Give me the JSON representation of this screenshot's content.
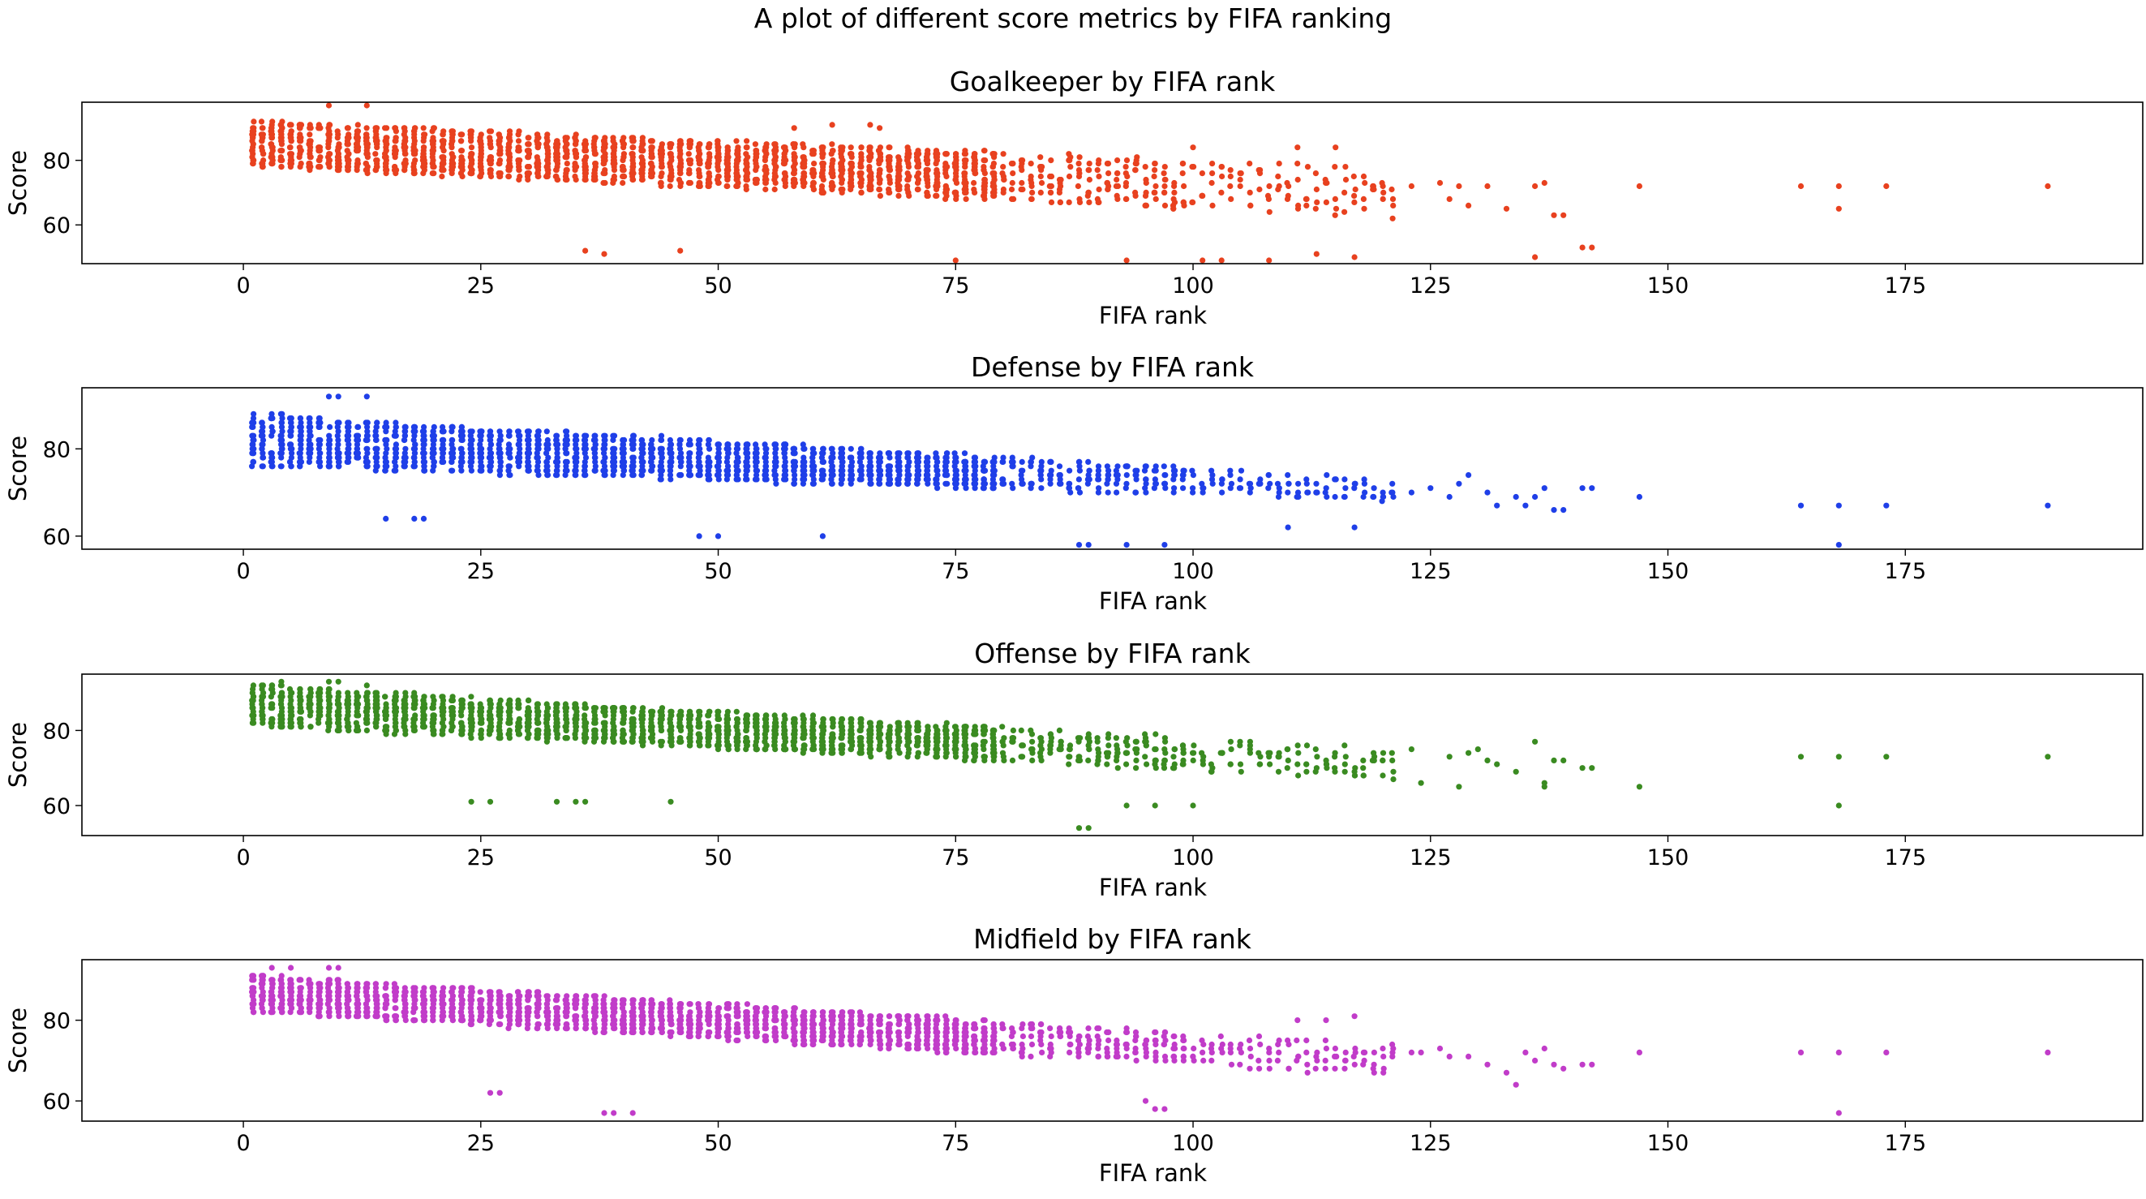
{
  "figure": {
    "suptitle": "A plot of different score metrics by FIFA ranking"
  },
  "chart_data": [
    {
      "type": "scatter",
      "title": "Goalkeeper by FIFA rank",
      "xlabel": "FIFA rank",
      "ylabel": "Score",
      "xlim": [
        -17,
        200
      ],
      "ylim": [
        48,
        98
      ],
      "xticks": [
        0,
        25,
        50,
        75,
        100,
        125,
        150,
        175
      ],
      "yticks": [
        60,
        80
      ],
      "color": "#e8411f",
      "profile": {
        "ranks": [
          1,
          121
        ],
        "top": [
          92,
          78
        ],
        "bottom": [
          78,
          62
        ],
        "sparse_points": [
          [
            123,
            72
          ],
          [
            126,
            73
          ],
          [
            127,
            68
          ],
          [
            128,
            72
          ],
          [
            129,
            66
          ],
          [
            131,
            72
          ],
          [
            133,
            65
          ],
          [
            136,
            72
          ],
          [
            137,
            73
          ],
          [
            138,
            63
          ],
          [
            139,
            63
          ],
          [
            141,
            53
          ],
          [
            142,
            53
          ],
          [
            147,
            72
          ],
          [
            164,
            72
          ],
          [
            168,
            72
          ],
          [
            168,
            65
          ],
          [
            173,
            72
          ],
          [
            190,
            72
          ]
        ],
        "outliers": [
          [
            13,
            97
          ],
          [
            9,
            97
          ],
          [
            36,
            52
          ],
          [
            38,
            51
          ],
          [
            46,
            52
          ],
          [
            75,
            49
          ],
          [
            93,
            49
          ],
          [
            101,
            49
          ],
          [
            103,
            49
          ],
          [
            108,
            49
          ],
          [
            113,
            51
          ],
          [
            117,
            50
          ],
          [
            136,
            50
          ],
          [
            62,
            91
          ],
          [
            66,
            91
          ],
          [
            58,
            90
          ],
          [
            67,
            90
          ],
          [
            100,
            84
          ],
          [
            111,
            84
          ],
          [
            115,
            84
          ]
        ]
      }
    },
    {
      "type": "scatter",
      "title": "Defense by FIFA rank",
      "xlabel": "FIFA rank",
      "ylabel": "Score",
      "xlim": [
        -17,
        200
      ],
      "ylim": [
        57,
        94
      ],
      "xticks": [
        0,
        25,
        50,
        75,
        100,
        125,
        150,
        175
      ],
      "yticks": [
        60,
        80
      ],
      "color": "#1f3fe8",
      "profile": {
        "ranks": [
          1,
          121
        ],
        "top": [
          88,
          73
        ],
        "bottom": [
          76,
          68
        ],
        "sparse_points": [
          [
            123,
            70
          ],
          [
            125,
            71
          ],
          [
            127,
            69
          ],
          [
            128,
            72
          ],
          [
            129,
            74
          ],
          [
            131,
            70
          ],
          [
            132,
            67
          ],
          [
            134,
            69
          ],
          [
            135,
            67
          ],
          [
            136,
            69
          ],
          [
            137,
            71
          ],
          [
            138,
            66
          ],
          [
            139,
            66
          ],
          [
            141,
            71
          ],
          [
            142,
            71
          ],
          [
            147,
            69
          ],
          [
            164,
            67
          ],
          [
            168,
            67
          ],
          [
            168,
            58
          ],
          [
            173,
            67
          ],
          [
            190,
            67
          ]
        ],
        "outliers": [
          [
            9,
            92
          ],
          [
            10,
            92
          ],
          [
            13,
            92
          ],
          [
            15,
            64
          ],
          [
            18,
            64
          ],
          [
            19,
            64
          ],
          [
            48,
            60
          ],
          [
            50,
            60
          ],
          [
            61,
            60
          ],
          [
            88,
            58
          ],
          [
            89,
            58
          ],
          [
            93,
            58
          ],
          [
            97,
            58
          ],
          [
            110,
            62
          ],
          [
            117,
            62
          ]
        ]
      }
    },
    {
      "type": "scatter",
      "title": "Offense by FIFA rank",
      "xlabel": "FIFA rank",
      "ylabel": "Score",
      "xlim": [
        -17,
        200
      ],
      "ylim": [
        52,
        95
      ],
      "xticks": [
        0,
        25,
        50,
        75,
        100,
        125,
        150,
        175
      ],
      "yticks": [
        60,
        80
      ],
      "color": "#3a8b21",
      "profile": {
        "ranks": [
          1,
          121
        ],
        "top": [
          92,
          75
        ],
        "bottom": [
          81,
          67
        ],
        "sparse_points": [
          [
            123,
            75
          ],
          [
            124,
            66
          ],
          [
            127,
            73
          ],
          [
            128,
            65
          ],
          [
            129,
            74
          ],
          [
            130,
            75
          ],
          [
            131,
            72
          ],
          [
            132,
            71
          ],
          [
            134,
            69
          ],
          [
            136,
            77
          ],
          [
            137,
            65
          ],
          [
            137,
            66
          ],
          [
            138,
            72
          ],
          [
            139,
            72
          ],
          [
            141,
            70
          ],
          [
            142,
            70
          ],
          [
            147,
            65
          ],
          [
            164,
            73
          ],
          [
            168,
            73
          ],
          [
            168,
            60
          ],
          [
            173,
            73
          ],
          [
            190,
            73
          ]
        ],
        "outliers": [
          [
            24,
            61
          ],
          [
            26,
            61
          ],
          [
            33,
            61
          ],
          [
            35,
            61
          ],
          [
            36,
            61
          ],
          [
            45,
            61
          ],
          [
            88,
            54
          ],
          [
            89,
            54
          ],
          [
            93,
            60
          ],
          [
            96,
            60
          ],
          [
            100,
            60
          ],
          [
            4,
            93
          ],
          [
            9,
            93
          ],
          [
            10,
            93
          ],
          [
            13,
            92
          ]
        ]
      }
    },
    {
      "type": "scatter",
      "title": "Midfield by FIFA rank",
      "xlabel": "FIFA rank",
      "ylabel": "Score",
      "xlim": [
        -17,
        200
      ],
      "ylim": [
        55,
        95
      ],
      "xticks": [
        0,
        25,
        50,
        75,
        100,
        125,
        150,
        175
      ],
      "yticks": [
        60,
        80
      ],
      "color": "#c13cc9",
      "profile": {
        "ranks": [
          1,
          121
        ],
        "top": [
          91,
          74
        ],
        "bottom": [
          82,
          66
        ],
        "sparse_points": [
          [
            123,
            72
          ],
          [
            124,
            72
          ],
          [
            126,
            73
          ],
          [
            127,
            71
          ],
          [
            129,
            71
          ],
          [
            131,
            69
          ],
          [
            133,
            67
          ],
          [
            134,
            64
          ],
          [
            135,
            72
          ],
          [
            136,
            70
          ],
          [
            137,
            73
          ],
          [
            138,
            69
          ],
          [
            139,
            68
          ],
          [
            141,
            69
          ],
          [
            142,
            69
          ],
          [
            147,
            72
          ],
          [
            164,
            72
          ],
          [
            168,
            72
          ],
          [
            168,
            57
          ],
          [
            173,
            72
          ],
          [
            190,
            72
          ]
        ],
        "outliers": [
          [
            3,
            93
          ],
          [
            5,
            93
          ],
          [
            9,
            93
          ],
          [
            10,
            93
          ],
          [
            38,
            57
          ],
          [
            39,
            57
          ],
          [
            41,
            57
          ],
          [
            26,
            62
          ],
          [
            27,
            62
          ],
          [
            96,
            58
          ],
          [
            97,
            58
          ],
          [
            95,
            60
          ],
          [
            111,
            80
          ],
          [
            114,
            80
          ],
          [
            117,
            81
          ]
        ]
      }
    }
  ]
}
